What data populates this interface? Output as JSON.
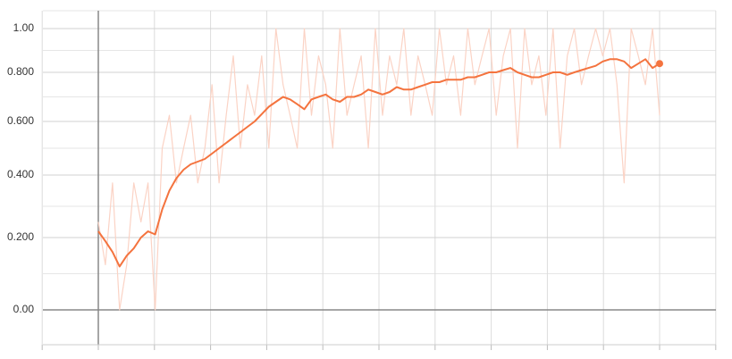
{
  "chart_data": {
    "type": "line",
    "ylim": [
      -0.12,
      1.06
    ],
    "yticks": [
      {
        "value": 0,
        "label": "0.00"
      },
      {
        "value": 0.2,
        "label": "0.200"
      },
      {
        "value": 0.4,
        "label": "0.400"
      },
      {
        "value": 0.6,
        "label": "0.600"
      },
      {
        "value": 0.8,
        "label": "0.800"
      },
      {
        "value": 1,
        "label": "1.00"
      }
    ],
    "grid": true,
    "series": [
      {
        "color": "#fbd3c5",
        "values": [
          0.25,
          0.125,
          0.375,
          0,
          0.125,
          0.375,
          0.25,
          0.375,
          0,
          0.5,
          0.625,
          0.375,
          0.5,
          0.625,
          0.375,
          0.5,
          0.75,
          0.375,
          0.625,
          0.875,
          0.5,
          0.75,
          0.625,
          0.875,
          0.5,
          1,
          0.75,
          0.625,
          0.5,
          1,
          0.625,
          0.875,
          0.75,
          0.5,
          1,
          0.625,
          0.75,
          0.875,
          0.5,
          1,
          0.625,
          0.875,
          0.75,
          1,
          0.625,
          0.875,
          0.75,
          0.625,
          1,
          0.75,
          0.875,
          0.625,
          1,
          0.75,
          0.875,
          1,
          0.625,
          0.875,
          1,
          0.5,
          1,
          0.75,
          0.875,
          0.625,
          1,
          0.5,
          0.875,
          1,
          0.75,
          0.875,
          1,
          0.875,
          1,
          0.75,
          0.375,
          1,
          0.875,
          0.75,
          1,
          0.625
        ]
      },
      {
        "color": "#f4733e",
        "values": [
          0.22,
          0.19,
          0.16,
          0.12,
          0.15,
          0.17,
          0.2,
          0.22,
          0.21,
          0.29,
          0.35,
          0.39,
          0.42,
          0.44,
          0.45,
          0.46,
          0.48,
          0.5,
          0.52,
          0.54,
          0.56,
          0.58,
          0.6,
          0.63,
          0.66,
          0.68,
          0.7,
          0.69,
          0.67,
          0.65,
          0.69,
          0.7,
          0.71,
          0.69,
          0.68,
          0.7,
          0.7,
          0.71,
          0.73,
          0.72,
          0.71,
          0.72,
          0.74,
          0.73,
          0.73,
          0.74,
          0.75,
          0.76,
          0.76,
          0.77,
          0.77,
          0.77,
          0.78,
          0.78,
          0.79,
          0.8,
          0.8,
          0.81,
          0.82,
          0.8,
          0.79,
          0.78,
          0.78,
          0.79,
          0.8,
          0.8,
          0.79,
          0.8,
          0.81,
          0.82,
          0.83,
          0.85,
          0.86,
          0.86,
          0.85,
          0.82,
          0.84,
          0.86,
          0.82,
          0.84
        ]
      }
    ]
  }
}
